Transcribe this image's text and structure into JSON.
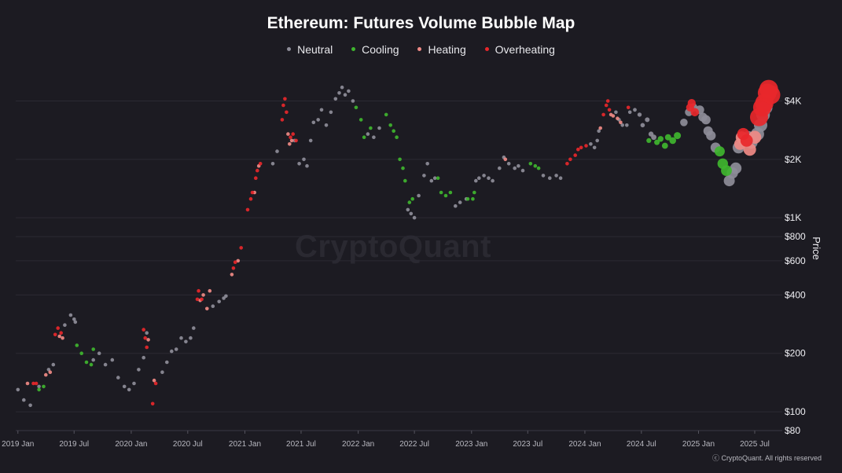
{
  "chart_data": {
    "type": "scatter",
    "title": "Ethereum: Futures Volume Bubble Map",
    "ylabel": "Price",
    "yscale": "log",
    "ylim": [
      80,
      6000
    ],
    "xlim": [
      "2018-12-25",
      "2025-09-15"
    ],
    "grid": true,
    "legend_position": "top-center",
    "colors": {
      "Neutral": "#8e8d99",
      "Cooling": "#3fb52f",
      "Heating": "#f08a86",
      "Overheating": "#e8272b"
    },
    "x_ticks": [
      {
        "label": "2019 Jan",
        "date": "2019-01-01"
      },
      {
        "label": "2019 Jul",
        "date": "2019-07-01"
      },
      {
        "label": "2020 Jan",
        "date": "2020-01-01"
      },
      {
        "label": "2020 Jul",
        "date": "2020-07-01"
      },
      {
        "label": "2021 Jan",
        "date": "2021-01-01"
      },
      {
        "label": "2021 Jul",
        "date": "2021-07-01"
      },
      {
        "label": "2022 Jan",
        "date": "2022-01-01"
      },
      {
        "label": "2022 Jul",
        "date": "2022-07-01"
      },
      {
        "label": "2023 Jan",
        "date": "2023-01-01"
      },
      {
        "label": "2023 Jul",
        "date": "2023-07-01"
      },
      {
        "label": "2024 Jan",
        "date": "2024-01-01"
      },
      {
        "label": "2024 Jul",
        "date": "2024-07-01"
      },
      {
        "label": "2025 Jan",
        "date": "2025-01-01"
      },
      {
        "label": "2025 Jul",
        "date": "2025-07-01"
      }
    ],
    "y_ticks": [
      {
        "label": "$4K",
        "value": 4000
      },
      {
        "label": "$2K",
        "value": 2000
      },
      {
        "label": "$1K",
        "value": 1000
      },
      {
        "label": "$800",
        "value": 800
      },
      {
        "label": "$600",
        "value": 600
      },
      {
        "label": "$400",
        "value": 400
      },
      {
        "label": "$200",
        "value": 200
      },
      {
        "label": "$100",
        "value": 100
      },
      {
        "label": "$80",
        "value": 80
      }
    ],
    "series": [
      {
        "name": "Neutral",
        "points": [
          [
            "2019-01-01",
            130
          ],
          [
            "2019-01-20",
            115
          ],
          [
            "2019-02-10",
            108
          ],
          [
            "2019-03-10",
            135
          ],
          [
            "2019-04-10",
            165
          ],
          [
            "2019-04-25",
            175
          ],
          [
            "2019-06-01",
            280
          ],
          [
            "2019-06-20",
            315
          ],
          [
            "2019-07-01",
            300
          ],
          [
            "2019-07-05",
            290
          ],
          [
            "2019-09-01",
            185
          ],
          [
            "2019-09-20",
            200
          ],
          [
            "2019-10-10",
            175
          ],
          [
            "2019-11-01",
            185
          ],
          [
            "2019-11-20",
            150
          ],
          [
            "2019-12-10",
            135
          ],
          [
            "2019-12-25",
            130
          ],
          [
            "2020-01-10",
            140
          ],
          [
            "2020-01-25",
            165
          ],
          [
            "2020-02-10",
            190
          ],
          [
            "2020-02-20",
            255
          ],
          [
            "2020-04-10",
            160
          ],
          [
            "2020-04-25",
            180
          ],
          [
            "2020-05-10",
            205
          ],
          [
            "2020-05-25",
            210
          ],
          [
            "2020-06-10",
            240
          ],
          [
            "2020-06-25",
            230
          ],
          [
            "2020-07-10",
            240
          ],
          [
            "2020-07-20",
            270
          ],
          [
            "2020-09-20",
            350
          ],
          [
            "2020-10-10",
            370
          ],
          [
            "2020-10-25",
            385
          ],
          [
            "2020-11-01",
            395
          ],
          [
            "2021-04-01",
            1900
          ],
          [
            "2021-04-15",
            2200
          ],
          [
            "2021-06-10",
            2500
          ],
          [
            "2021-06-25",
            1900
          ],
          [
            "2021-07-10",
            2000
          ],
          [
            "2021-07-20",
            1850
          ],
          [
            "2021-08-01",
            2500
          ],
          [
            "2021-08-10",
            3100
          ],
          [
            "2021-08-25",
            3200
          ],
          [
            "2021-09-05",
            3600
          ],
          [
            "2021-09-20",
            3000
          ],
          [
            "2021-10-05",
            3500
          ],
          [
            "2021-10-20",
            4100
          ],
          [
            "2021-11-01",
            4400
          ],
          [
            "2021-11-10",
            4700
          ],
          [
            "2021-11-20",
            4300
          ],
          [
            "2021-12-01",
            4500
          ],
          [
            "2021-12-15",
            4000
          ],
          [
            "2022-02-01",
            2700
          ],
          [
            "2022-02-20",
            2600
          ],
          [
            "2022-03-10",
            2900
          ],
          [
            "2022-06-10",
            1100
          ],
          [
            "2022-06-20",
            1050
          ],
          [
            "2022-07-01",
            1000
          ],
          [
            "2022-07-15",
            1300
          ],
          [
            "2022-08-01",
            1650
          ],
          [
            "2022-08-12",
            1900
          ],
          [
            "2022-08-25",
            1550
          ],
          [
            "2022-09-05",
            1600
          ],
          [
            "2022-11-10",
            1150
          ],
          [
            "2022-11-25",
            1200
          ],
          [
            "2022-12-15",
            1250
          ],
          [
            "2023-01-15",
            1550
          ],
          [
            "2023-01-25",
            1600
          ],
          [
            "2023-02-10",
            1650
          ],
          [
            "2023-02-25",
            1600
          ],
          [
            "2023-03-10",
            1550
          ],
          [
            "2023-04-01",
            1800
          ],
          [
            "2023-04-15",
            2050
          ],
          [
            "2023-05-01",
            1900
          ],
          [
            "2023-05-20",
            1800
          ],
          [
            "2023-06-01",
            1850
          ],
          [
            "2023-06-15",
            1750
          ],
          [
            "2023-08-20",
            1650
          ],
          [
            "2023-09-10",
            1600
          ],
          [
            "2023-10-01",
            1650
          ],
          [
            "2023-10-15",
            1600
          ],
          [
            "2024-01-20",
            2400
          ],
          [
            "2024-02-01",
            2300
          ],
          [
            "2024-02-10",
            2500
          ],
          [
            "2024-02-15",
            2800
          ],
          [
            "2024-04-10",
            3500
          ],
          [
            "2024-04-20",
            3200
          ],
          [
            "2024-05-01",
            3000
          ],
          [
            "2024-05-15",
            3000
          ],
          [
            "2024-05-25",
            3500
          ],
          [
            "2024-06-10",
            3600
          ],
          [
            "2024-06-25",
            3400
          ],
          [
            "2024-07-05",
            3000
          ],
          [
            "2024-07-20",
            3200
          ],
          [
            "2024-08-01",
            2700
          ],
          [
            "2024-08-10",
            2600
          ],
          [
            "2024-11-15",
            3100
          ],
          [
            "2024-12-01",
            3500
          ],
          [
            "2024-12-15",
            3700
          ],
          [
            "2025-01-05",
            3600
          ],
          [
            "2025-01-15",
            3300
          ],
          [
            "2025-01-25",
            3200
          ],
          [
            "2025-02-01",
            2800
          ],
          [
            "2025-02-10",
            2650
          ],
          [
            "2025-02-25",
            2300
          ],
          [
            "2025-04-10",
            1550
          ],
          [
            "2025-04-20",
            1700
          ],
          [
            "2025-05-01",
            1800
          ],
          [
            "2025-05-10",
            2300
          ],
          [
            "2025-05-25",
            2550
          ],
          [
            "2025-06-10",
            2600
          ],
          [
            "2025-06-20",
            2450
          ],
          [
            "2025-07-10",
            2700
          ],
          [
            "2025-07-20",
            3000
          ],
          [
            "2025-07-28",
            3400
          ],
          [
            "2025-08-05",
            3700
          ]
        ]
      },
      {
        "name": "Cooling",
        "points": [
          [
            "2019-03-10",
            130
          ],
          [
            "2019-03-25",
            135
          ],
          [
            "2019-07-10",
            220
          ],
          [
            "2019-07-25",
            200
          ],
          [
            "2019-08-10",
            180
          ],
          [
            "2019-08-25",
            175
          ],
          [
            "2019-09-01",
            210
          ],
          [
            "2021-12-25",
            3700
          ],
          [
            "2022-01-10",
            3200
          ],
          [
            "2022-01-20",
            2600
          ],
          [
            "2022-02-10",
            2900
          ],
          [
            "2022-04-01",
            3400
          ],
          [
            "2022-04-15",
            3000
          ],
          [
            "2022-04-25",
            2800
          ],
          [
            "2022-05-05",
            2600
          ],
          [
            "2022-05-15",
            2000
          ],
          [
            "2022-05-25",
            1800
          ],
          [
            "2022-06-01",
            1550
          ],
          [
            "2022-06-15",
            1200
          ],
          [
            "2022-06-25",
            1250
          ],
          [
            "2022-09-15",
            1600
          ],
          [
            "2022-09-25",
            1350
          ],
          [
            "2022-10-10",
            1300
          ],
          [
            "2022-10-25",
            1350
          ],
          [
            "2022-12-20",
            1250
          ],
          [
            "2023-01-05",
            1250
          ],
          [
            "2023-01-10",
            1350
          ],
          [
            "2023-07-10",
            1900
          ],
          [
            "2023-07-25",
            1850
          ],
          [
            "2023-08-05",
            1800
          ],
          [
            "2024-07-25",
            2500
          ],
          [
            "2024-08-20",
            2450
          ],
          [
            "2024-09-01",
            2550
          ],
          [
            "2024-09-15",
            2350
          ],
          [
            "2024-09-25",
            2600
          ],
          [
            "2024-10-10",
            2500
          ],
          [
            "2024-10-25",
            2650
          ],
          [
            "2025-03-10",
            2200
          ],
          [
            "2025-03-20",
            1900
          ],
          [
            "2025-04-01",
            1750
          ]
        ]
      },
      {
        "name": "Heating",
        "points": [
          [
            "2019-02-01",
            140
          ],
          [
            "2019-04-01",
            155
          ],
          [
            "2019-04-15",
            160
          ],
          [
            "2019-05-15",
            245
          ],
          [
            "2019-05-25",
            240
          ],
          [
            "2020-02-25",
            235
          ],
          [
            "2020-03-15",
            145
          ],
          [
            "2020-08-10",
            375
          ],
          [
            "2020-08-20",
            400
          ],
          [
            "2020-09-01",
            340
          ],
          [
            "2020-09-10",
            420
          ],
          [
            "2020-11-20",
            510
          ],
          [
            "2020-12-10",
            600
          ],
          [
            "2021-02-01",
            1350
          ],
          [
            "2021-02-15",
            1850
          ],
          [
            "2021-05-20",
            2700
          ],
          [
            "2021-05-25",
            2400
          ],
          [
            "2021-06-01",
            2500
          ],
          [
            "2023-04-20",
            2000
          ],
          [
            "2024-02-20",
            2900
          ],
          [
            "2024-03-25",
            3400
          ],
          [
            "2024-04-01",
            3350
          ],
          [
            "2024-04-15",
            3250
          ],
          [
            "2024-04-25",
            3100
          ],
          [
            "2025-05-15",
            2400
          ],
          [
            "2025-05-20",
            2600
          ],
          [
            "2025-06-01",
            2500
          ],
          [
            "2025-06-15",
            2250
          ],
          [
            "2025-07-01",
            2600
          ]
        ]
      },
      {
        "name": "Overheating",
        "points": [
          [
            "2019-02-20",
            140
          ],
          [
            "2019-03-01",
            140
          ],
          [
            "2019-05-01",
            250
          ],
          [
            "2019-05-10",
            270
          ],
          [
            "2019-05-20",
            255
          ],
          [
            "2020-02-10",
            265
          ],
          [
            "2020-02-15",
            240
          ],
          [
            "2020-02-20",
            215
          ],
          [
            "2020-03-10",
            110
          ],
          [
            "2020-03-20",
            140
          ],
          [
            "2020-08-01",
            380
          ],
          [
            "2020-08-05",
            420
          ],
          [
            "2020-08-15",
            380
          ],
          [
            "2020-11-25",
            550
          ],
          [
            "2020-12-01",
            590
          ],
          [
            "2020-12-20",
            700
          ],
          [
            "2021-01-10",
            1100
          ],
          [
            "2021-01-20",
            1250
          ],
          [
            "2021-01-25",
            1350
          ],
          [
            "2021-02-05",
            1600
          ],
          [
            "2021-02-10",
            1750
          ],
          [
            "2021-02-20",
            1900
          ],
          [
            "2021-05-01",
            3200
          ],
          [
            "2021-05-05",
            3800
          ],
          [
            "2021-05-10",
            4100
          ],
          [
            "2021-05-15",
            3500
          ],
          [
            "2021-05-28",
            2600
          ],
          [
            "2021-06-05",
            2700
          ],
          [
            "2021-06-15",
            2500
          ],
          [
            "2023-11-05",
            1900
          ],
          [
            "2023-11-15",
            2000
          ],
          [
            "2023-12-01",
            2100
          ],
          [
            "2023-12-10",
            2250
          ],
          [
            "2023-12-20",
            2300
          ],
          [
            "2024-01-05",
            2350
          ],
          [
            "2024-03-01",
            3400
          ],
          [
            "2024-03-10",
            3800
          ],
          [
            "2024-03-15",
            4000
          ],
          [
            "2024-03-20",
            3600
          ],
          [
            "2024-05-20",
            3700
          ],
          [
            "2024-12-05",
            3700
          ],
          [
            "2024-12-10",
            3900
          ],
          [
            "2024-12-20",
            3500
          ],
          [
            "2025-05-25",
            2700
          ],
          [
            "2025-06-05",
            2500
          ],
          [
            "2025-07-15",
            3300
          ],
          [
            "2025-07-25",
            3700
          ],
          [
            "2025-08-01",
            3900
          ],
          [
            "2025-08-10",
            4400
          ],
          [
            "2025-08-15",
            4600
          ],
          [
            "2025-08-22",
            4300
          ]
        ]
      }
    ]
  },
  "watermark": "CryptoQuant",
  "footer": "ⓒ CryptoQuant. All rights reserved"
}
